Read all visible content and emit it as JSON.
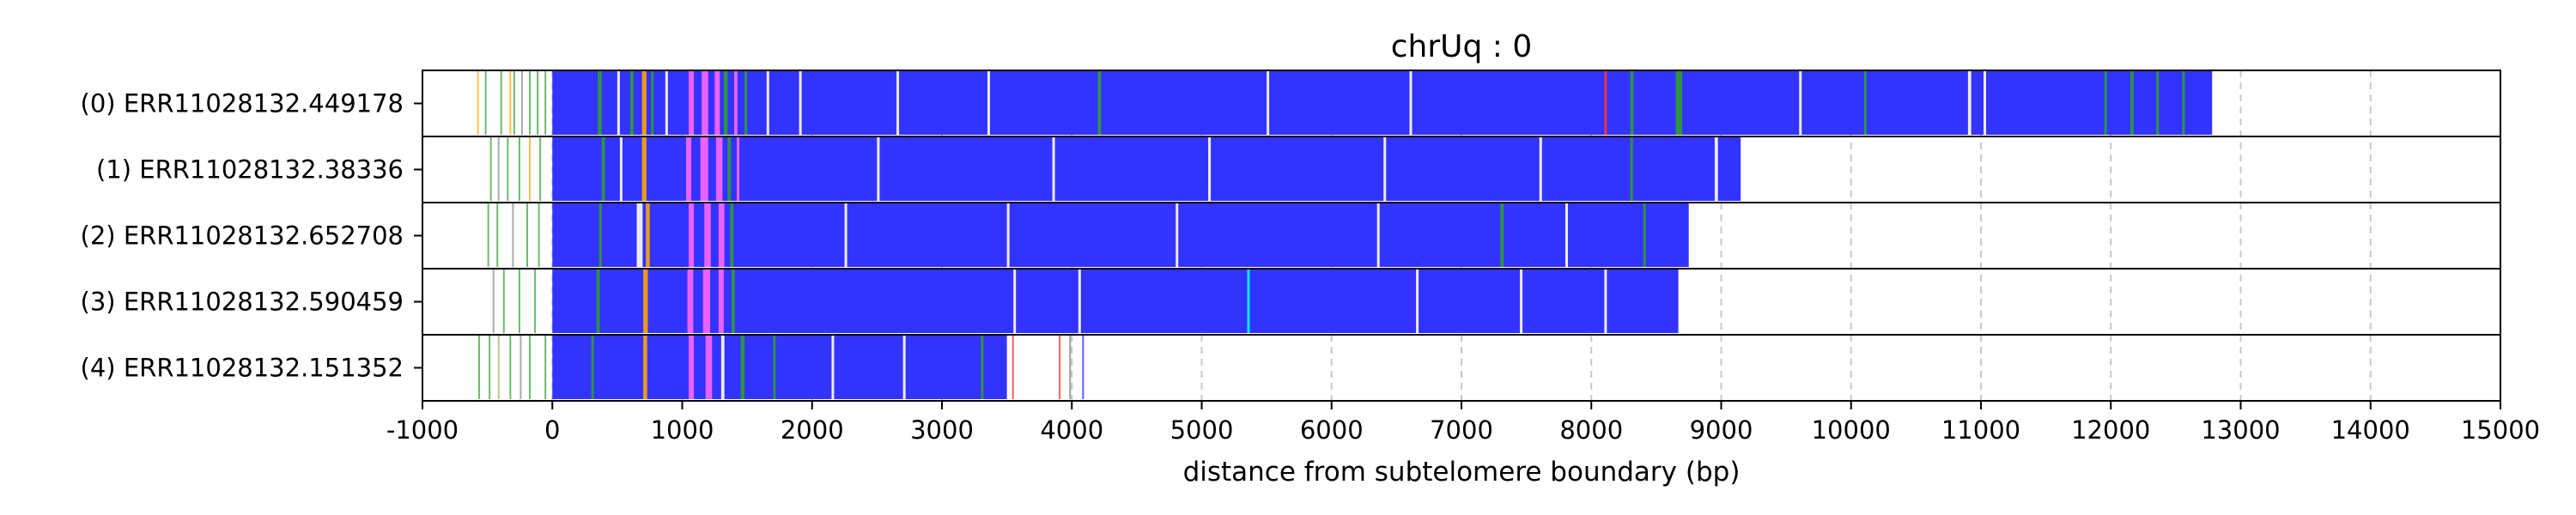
{
  "chart_data": {
    "type": "stacked-read-bars",
    "title": "chrUq : 0",
    "xlabel": "distance from subtelomere boundary (bp)",
    "xlim": [
      -1000,
      15000
    ],
    "xticks": [
      -1000,
      0,
      1000,
      2000,
      3000,
      4000,
      5000,
      6000,
      7000,
      8000,
      9000,
      10000,
      11000,
      12000,
      13000,
      14000,
      15000
    ],
    "grid": "vertical-dashed",
    "colors": {
      "main": "#3333ff",
      "green": "#2e9e2e",
      "orange": "#ffa500",
      "magenta": "#ff66ff",
      "white": "#ffffff",
      "cyan": "#00ffff",
      "red": "#ff3333",
      "gray": "#888888",
      "olive": "#a6a65a"
    },
    "reads": [
      {
        "label": "(0) ERR11028132.449178",
        "start": 0,
        "end": 12780,
        "pre_marks": [
          {
            "x": -580,
            "c": "orange"
          },
          {
            "x": -520,
            "c": "green"
          },
          {
            "x": -400,
            "c": "green"
          },
          {
            "x": -330,
            "c": "orange"
          },
          {
            "x": -300,
            "c": "green"
          },
          {
            "x": -240,
            "c": "gray"
          },
          {
            "x": -180,
            "c": "green"
          },
          {
            "x": -120,
            "c": "green"
          },
          {
            "x": -60,
            "c": "green"
          }
        ],
        "marks": [
          {
            "x": 350,
            "w": 30,
            "c": "green"
          },
          {
            "x": 500,
            "w": 20,
            "c": "white"
          },
          {
            "x": 600,
            "w": 25,
            "c": "green"
          },
          {
            "x": 690,
            "w": 35,
            "c": "orange"
          },
          {
            "x": 760,
            "w": 20,
            "c": "green"
          },
          {
            "x": 870,
            "w": 20,
            "c": "white"
          },
          {
            "x": 1050,
            "w": 40,
            "c": "magenta"
          },
          {
            "x": 1150,
            "w": 50,
            "c": "magenta"
          },
          {
            "x": 1250,
            "w": 40,
            "c": "magenta"
          },
          {
            "x": 1320,
            "w": 30,
            "c": "green"
          },
          {
            "x": 1400,
            "w": 25,
            "c": "magenta"
          },
          {
            "x": 1480,
            "w": 20,
            "c": "green"
          },
          {
            "x": 1650,
            "w": 15,
            "c": "white"
          },
          {
            "x": 1900,
            "w": 15,
            "c": "white"
          },
          {
            "x": 2650,
            "w": 15,
            "c": "white"
          },
          {
            "x": 3350,
            "w": 15,
            "c": "white"
          },
          {
            "x": 4200,
            "w": 25,
            "c": "green"
          },
          {
            "x": 5500,
            "w": 15,
            "c": "white"
          },
          {
            "x": 6600,
            "w": 15,
            "c": "white"
          },
          {
            "x": 8100,
            "w": 20,
            "c": "red"
          },
          {
            "x": 8300,
            "w": 25,
            "c": "green"
          },
          {
            "x": 8650,
            "w": 50,
            "c": "green"
          },
          {
            "x": 9600,
            "w": 15,
            "c": "white"
          },
          {
            "x": 10100,
            "w": 20,
            "c": "green"
          },
          {
            "x": 10900,
            "w": 25,
            "c": "white"
          },
          {
            "x": 11020,
            "w": 15,
            "c": "white"
          },
          {
            "x": 11950,
            "w": 20,
            "c": "green"
          },
          {
            "x": 12150,
            "w": 25,
            "c": "green"
          },
          {
            "x": 12350,
            "w": 20,
            "c": "green"
          },
          {
            "x": 12550,
            "w": 15,
            "c": "green"
          }
        ]
      },
      {
        "label": "(1) ERR11028132.38336",
        "start": 0,
        "end": 9150,
        "pre_marks": [
          {
            "x": -480,
            "c": "green"
          },
          {
            "x": -420,
            "c": "gray"
          },
          {
            "x": -350,
            "c": "green"
          },
          {
            "x": -260,
            "c": "green"
          },
          {
            "x": -180,
            "c": "orange"
          },
          {
            "x": -100,
            "c": "green"
          }
        ],
        "marks": [
          {
            "x": 380,
            "w": 25,
            "c": "green"
          },
          {
            "x": 520,
            "w": 15,
            "c": "white"
          },
          {
            "x": 690,
            "w": 35,
            "c": "orange"
          },
          {
            "x": 1030,
            "w": 40,
            "c": "magenta"
          },
          {
            "x": 1140,
            "w": 60,
            "c": "magenta"
          },
          {
            "x": 1260,
            "w": 50,
            "c": "magenta"
          },
          {
            "x": 1350,
            "w": 25,
            "c": "green"
          },
          {
            "x": 1420,
            "w": 20,
            "c": "magenta"
          },
          {
            "x": 2500,
            "w": 20,
            "c": "white"
          },
          {
            "x": 3850,
            "w": 15,
            "c": "white"
          },
          {
            "x": 5050,
            "w": 15,
            "c": "white"
          },
          {
            "x": 6400,
            "w": 15,
            "c": "white"
          },
          {
            "x": 7600,
            "w": 20,
            "c": "white"
          },
          {
            "x": 8300,
            "w": 20,
            "c": "green"
          },
          {
            "x": 8950,
            "w": 25,
            "c": "white"
          }
        ]
      },
      {
        "label": "(2) ERR11028132.652708",
        "start": 0,
        "end": 8750,
        "pre_marks": [
          {
            "x": -500,
            "c": "green"
          },
          {
            "x": -430,
            "c": "green"
          },
          {
            "x": -310,
            "c": "gray"
          },
          {
            "x": -200,
            "c": "green"
          },
          {
            "x": -110,
            "c": "green"
          }
        ],
        "marks": [
          {
            "x": 360,
            "w": 20,
            "c": "green"
          },
          {
            "x": 650,
            "w": 45,
            "c": "white"
          },
          {
            "x": 720,
            "w": 30,
            "c": "orange"
          },
          {
            "x": 1050,
            "w": 40,
            "c": "magenta"
          },
          {
            "x": 1170,
            "w": 50,
            "c": "magenta"
          },
          {
            "x": 1280,
            "w": 45,
            "c": "magenta"
          },
          {
            "x": 1370,
            "w": 25,
            "c": "green"
          },
          {
            "x": 2250,
            "w": 20,
            "c": "white"
          },
          {
            "x": 3500,
            "w": 15,
            "c": "white"
          },
          {
            "x": 4800,
            "w": 15,
            "c": "white"
          },
          {
            "x": 6350,
            "w": 15,
            "c": "white"
          },
          {
            "x": 7300,
            "w": 25,
            "c": "green"
          },
          {
            "x": 7800,
            "w": 15,
            "c": "white"
          },
          {
            "x": 8400,
            "w": 20,
            "c": "green"
          }
        ]
      },
      {
        "label": "(3) ERR11028132.590459",
        "start": 0,
        "end": 8670,
        "pre_marks": [
          {
            "x": -460,
            "c": "gray"
          },
          {
            "x": -380,
            "c": "green"
          },
          {
            "x": -260,
            "c": "green"
          },
          {
            "x": -140,
            "c": "green"
          }
        ],
        "marks": [
          {
            "x": 340,
            "w": 25,
            "c": "green"
          },
          {
            "x": 700,
            "w": 35,
            "c": "orange"
          },
          {
            "x": 1040,
            "w": 45,
            "c": "magenta"
          },
          {
            "x": 1160,
            "w": 55,
            "c": "magenta"
          },
          {
            "x": 1280,
            "w": 40,
            "c": "magenta"
          },
          {
            "x": 1380,
            "w": 25,
            "c": "green"
          },
          {
            "x": 3550,
            "w": 15,
            "c": "white"
          },
          {
            "x": 4050,
            "w": 15,
            "c": "white"
          },
          {
            "x": 5350,
            "w": 20,
            "c": "cyan"
          },
          {
            "x": 6650,
            "w": 20,
            "c": "white"
          },
          {
            "x": 7450,
            "w": 15,
            "c": "white"
          },
          {
            "x": 8100,
            "w": 15,
            "c": "white"
          }
        ]
      },
      {
        "label": "(4) ERR11028132.151352",
        "start": 0,
        "end": 3500,
        "pre_marks": [
          {
            "x": -570,
            "c": "green"
          },
          {
            "x": -490,
            "c": "green"
          },
          {
            "x": -420,
            "c": "olive"
          },
          {
            "x": -330,
            "c": "green"
          },
          {
            "x": -250,
            "c": "gray"
          },
          {
            "x": -180,
            "c": "green"
          },
          {
            "x": -60,
            "c": "green"
          }
        ],
        "marks": [
          {
            "x": 300,
            "w": 20,
            "c": "green"
          },
          {
            "x": 700,
            "w": 30,
            "c": "orange"
          },
          {
            "x": 1050,
            "w": 40,
            "c": "magenta"
          },
          {
            "x": 1180,
            "w": 50,
            "c": "magenta"
          },
          {
            "x": 1300,
            "w": 25,
            "c": "white"
          },
          {
            "x": 1450,
            "w": 30,
            "c": "green"
          },
          {
            "x": 1700,
            "w": 20,
            "c": "green"
          },
          {
            "x": 2150,
            "w": 15,
            "c": "white"
          },
          {
            "x": 2700,
            "w": 15,
            "c": "white"
          },
          {
            "x": 3300,
            "w": 20,
            "c": "green"
          }
        ],
        "post_marks": [
          {
            "x": 3540,
            "c": "red"
          },
          {
            "x": 3900,
            "c": "red"
          },
          {
            "x": 3980,
            "c": "gray"
          },
          {
            "x": 4080,
            "c": "main"
          }
        ]
      }
    ]
  }
}
